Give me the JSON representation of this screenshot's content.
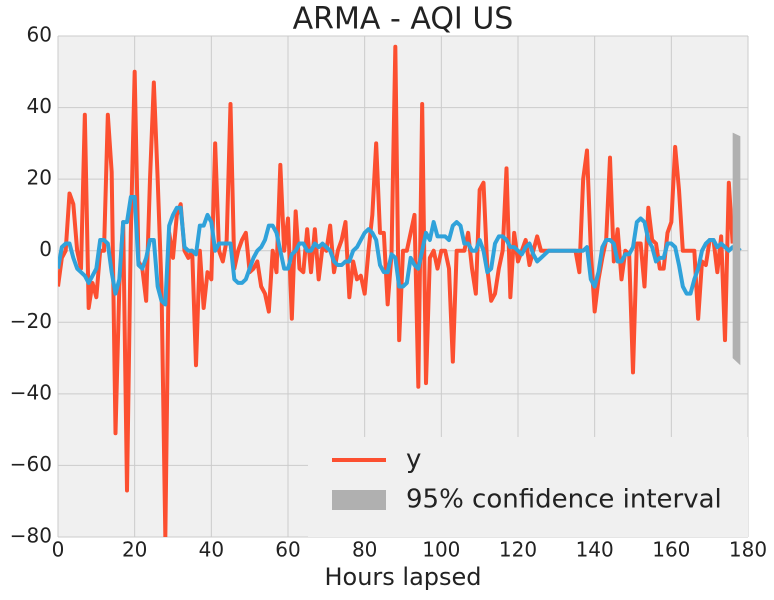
{
  "chart_data": {
    "type": "line",
    "title": "ARMA - AQI US",
    "xlabel": "Hours lapsed",
    "x": [
      0,
      1,
      2,
      3,
      4,
      5,
      6,
      7,
      8,
      9,
      10,
      11,
      12,
      13,
      14,
      15,
      16,
      17,
      18,
      19,
      20,
      21,
      22,
      23,
      24,
      25,
      26,
      27,
      28,
      29,
      30,
      31,
      32,
      33,
      34,
      35,
      36,
      37,
      38,
      39,
      40,
      41,
      42,
      43,
      44,
      45,
      46,
      47,
      48,
      49,
      50,
      51,
      52,
      53,
      54,
      55,
      56,
      57,
      58,
      59,
      60,
      61,
      62,
      63,
      64,
      65,
      66,
      67,
      68,
      69,
      70,
      71,
      72,
      73,
      74,
      75,
      76,
      77,
      78,
      79,
      80,
      81,
      82,
      83,
      84,
      85,
      86,
      87,
      88,
      89,
      90,
      91,
      92,
      93,
      94,
      95,
      96,
      97,
      98,
      99,
      100,
      101,
      102,
      103,
      104,
      105,
      106,
      107,
      108,
      109,
      110,
      111,
      112,
      113,
      114,
      115,
      116,
      117,
      118,
      119,
      120,
      121,
      122,
      123,
      124,
      125,
      126,
      127,
      128,
      129,
      130,
      131,
      132,
      133,
      134,
      135,
      136,
      137,
      138,
      139,
      140,
      141,
      142,
      143,
      144,
      145,
      146,
      147,
      148,
      149,
      150,
      151,
      152,
      153,
      154,
      155,
      156,
      157,
      158,
      159,
      160,
      161,
      162,
      163,
      164,
      165,
      166,
      167,
      168,
      169,
      170,
      171,
      172,
      173,
      174,
      175,
      176,
      177,
      178
    ],
    "series": [
      {
        "name": "y",
        "color": "#fc4f30",
        "values": [
          -10,
          -2,
          0,
          16,
          13,
          0,
          -5,
          38,
          -16,
          -9,
          -13,
          0,
          0,
          38,
          22,
          -51,
          -10,
          8,
          -67,
          5,
          50,
          -3,
          -5,
          -14,
          20,
          47,
          20,
          -10,
          -80,
          5,
          -2,
          10,
          13,
          0,
          -2,
          0,
          -32,
          0,
          -16,
          -6,
          -8,
          30,
          0,
          -3,
          3,
          41,
          -5,
          0,
          3,
          5,
          -6,
          -5,
          -3,
          -10,
          -12,
          -17,
          0,
          -6,
          24,
          0,
          9,
          -19,
          11,
          -5,
          -6,
          6,
          -6,
          6,
          -8,
          1,
          0,
          7,
          -6,
          0,
          3,
          8,
          -13,
          -3,
          -8,
          -7,
          -12,
          0,
          10,
          30,
          5,
          5,
          -15,
          -1,
          57,
          -25,
          0,
          0,
          5,
          10,
          -38,
          41,
          -37,
          -2,
          0,
          -5,
          0,
          0,
          -5,
          -31,
          0,
          0,
          0,
          5,
          -5,
          -12,
          17,
          19,
          -5,
          -14,
          -12,
          -5,
          0,
          23,
          -13,
          5,
          -3,
          0,
          3,
          -4,
          0,
          4,
          0,
          0,
          0,
          0,
          0,
          0,
          0,
          0,
          0,
          0,
          -6,
          20,
          28,
          0,
          -17,
          -8,
          -2,
          3,
          26,
          -3,
          6,
          -8,
          0,
          -1,
          -34,
          2,
          2,
          -10,
          12,
          3,
          2,
          -5,
          -5,
          5,
          8,
          29,
          17,
          0,
          0,
          0,
          0,
          -19,
          -3,
          -4,
          3,
          3,
          -6,
          4,
          -25,
          19,
          2,
          null,
          null
        ]
      },
      {
        "color": "#30a2da",
        "values": [
          -5,
          1,
          2,
          2,
          -2,
          -5,
          -6,
          -7,
          -9,
          -7,
          -5,
          3,
          3,
          2,
          -6,
          -12,
          -8,
          8,
          8,
          15,
          15,
          -4,
          -5,
          -2,
          3,
          3,
          -10,
          -14,
          -15,
          7,
          10,
          12,
          12,
          1,
          0,
          0,
          -1,
          7,
          7,
          10,
          8,
          0,
          2,
          2,
          2,
          2,
          -8,
          -9,
          -9,
          -8,
          -5,
          -2,
          0,
          1,
          3,
          7,
          7,
          5,
          0,
          -5,
          -5,
          -1,
          0,
          2,
          2,
          0,
          0,
          2,
          1,
          2,
          1,
          0,
          -3,
          -4,
          -4,
          -3,
          -3,
          0,
          1,
          3,
          5,
          6,
          5,
          3,
          -4,
          -6,
          -6,
          -1,
          -2,
          -10,
          -10,
          -9,
          -2,
          -4,
          -5,
          0,
          5,
          3,
          8,
          4,
          4,
          4,
          3,
          7,
          8,
          7,
          2,
          2,
          0,
          0,
          3,
          0,
          -6,
          -5,
          2,
          4,
          4,
          3,
          1,
          1,
          0,
          -1,
          1,
          2,
          -1,
          -3,
          -2,
          -1,
          0,
          0,
          0,
          0,
          0,
          0,
          0,
          0,
          0,
          0,
          1,
          -8,
          -10,
          -6,
          1,
          3,
          3,
          2,
          -3,
          -3,
          -1,
          -1,
          1,
          8,
          9,
          8,
          3,
          1,
          -3,
          -2,
          -2,
          2,
          2,
          1,
          -4,
          -10,
          -12,
          -12,
          -8,
          -5,
          0,
          2,
          3,
          3,
          1,
          2,
          1,
          0,
          1,
          1,
          0
        ]
      }
    ],
    "band": {
      "name": "95% confidence interval",
      "color": "#b0b0b0",
      "x": [
        176,
        178
      ],
      "lower": [
        -30,
        -32
      ],
      "upper": [
        33,
        32
      ]
    },
    "xlim": [
      0,
      180
    ],
    "xticks": [
      0,
      20,
      40,
      60,
      80,
      100,
      120,
      140,
      160,
      180
    ],
    "ylim": [
      -80,
      60
    ],
    "yticks": [
      {
        "value": -80,
        "label": "−80"
      },
      {
        "value": -60,
        "label": "−60"
      },
      {
        "value": -40,
        "label": "−40"
      },
      {
        "value": -20,
        "label": "−20"
      },
      0,
      20,
      40,
      60
    ],
    "grid": true,
    "legend": "lower right"
  }
}
